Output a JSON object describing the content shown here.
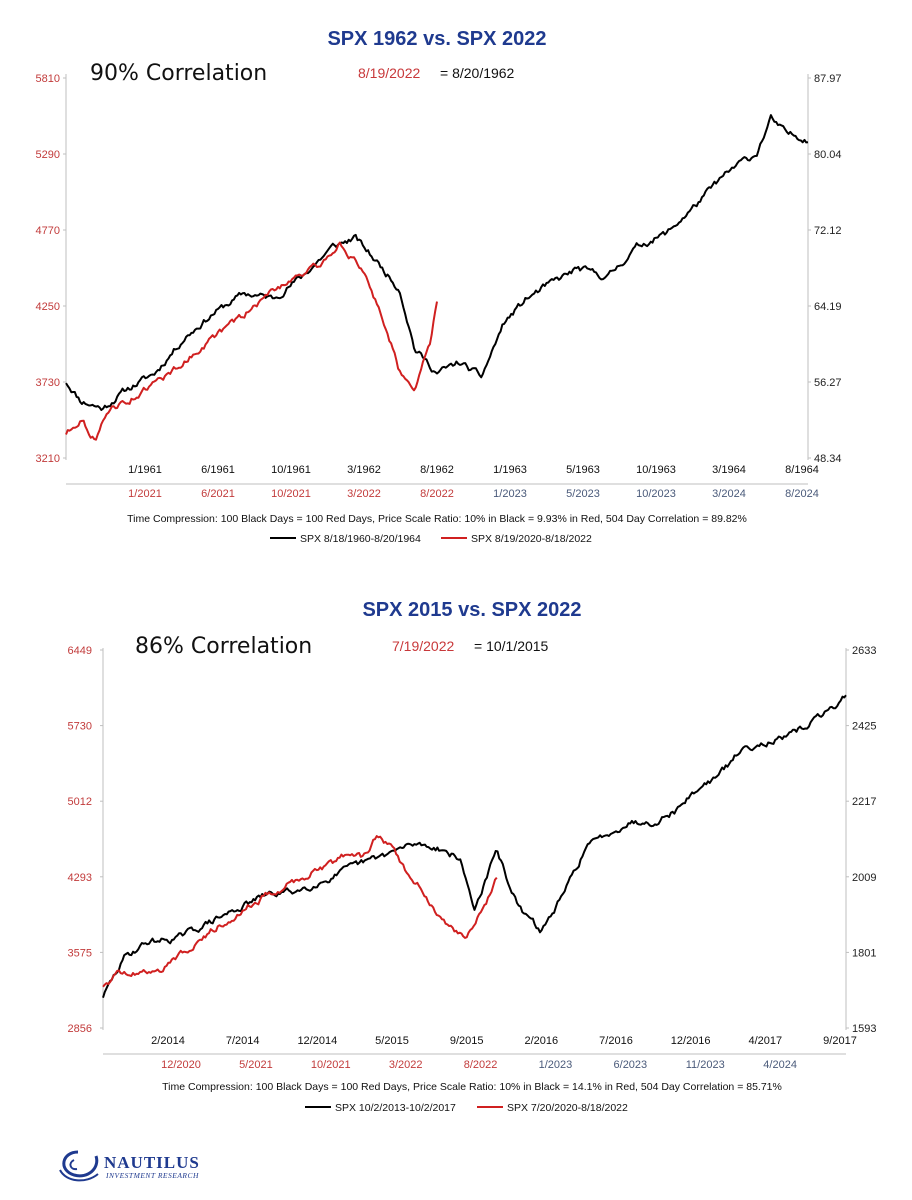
{
  "chart_data": [
    {
      "type": "line",
      "title": "SPX 1962 vs. SPX 2022",
      "annotation": "90% Correlation",
      "equivalence": {
        "red_date": "8/19/2022",
        "black_date": "= 8/20/1962"
      },
      "left_axis": {
        "ticks": [
          "5810",
          "5290",
          "4770",
          "4250",
          "3730",
          "3210"
        ],
        "ylim": [
          3210,
          5810
        ],
        "color": "#c8383a"
      },
      "right_axis": {
        "ticks": [
          "87.97",
          "80.04",
          "72.12",
          "64.19",
          "56.27",
          "48.34"
        ],
        "ylim": [
          48.34,
          87.97
        ]
      },
      "x_ticks_black": [
        "1/1961",
        "6/1961",
        "10/1961",
        "3/1962",
        "8/1962",
        "1/1963",
        "5/1963",
        "10/1963",
        "3/1964",
        "8/1964"
      ],
      "x_ticks_red": [
        "1/2021",
        "6/2021",
        "10/2021",
        "3/2022",
        "8/2022",
        "1/2023",
        "5/2023",
        "10/2023",
        "3/2024",
        "8/2024"
      ],
      "caption": "Time Compression: 100 Black Days = 100 Red Days,  Price Scale Ratio: 10% in Black = 9.93% in Red, 504 Day Correlation = 89.82%",
      "series": [
        {
          "name": "SPX 8/18/1960-8/20/1964",
          "color": "#000000",
          "axis": "right",
          "x": [
            0,
            0.02,
            0.05,
            0.08,
            0.12,
            0.16,
            0.2,
            0.24,
            0.28,
            0.32,
            0.36,
            0.39,
            0.42,
            0.45,
            0.47,
            0.5,
            0.53,
            0.56,
            0.59,
            0.62,
            0.65,
            0.69,
            0.73,
            0.77,
            0.81,
            0.85,
            0.88,
            0.91,
            0.93,
            0.95,
            0.97,
            1.0
          ],
          "values": [
            56.3,
            54.3,
            53.5,
            55.4,
            57.2,
            60.9,
            63.5,
            65.5,
            65.0,
            67.4,
            70.4,
            71.3,
            68.7,
            65.9,
            59.7,
            57.2,
            58.3,
            56.8,
            62.4,
            64.9,
            66.4,
            68.1,
            67.2,
            70.4,
            71.8,
            74.8,
            77.3,
            79.2,
            80.0,
            83.7,
            82.2,
            81.6
          ]
        },
        {
          "name": "SPX 8/19/2020-8/18/2022",
          "color": "#d02020",
          "axis": "left",
          "x": [
            0,
            0.02,
            0.04,
            0.06,
            0.08,
            0.12,
            0.16,
            0.2,
            0.24,
            0.28,
            0.31,
            0.34,
            0.37,
            0.39,
            0.41,
            0.43,
            0.45,
            0.47,
            0.49,
            0.5
          ],
          "values": [
            3380,
            3480,
            3330,
            3560,
            3590,
            3720,
            3870,
            4040,
            4190,
            4360,
            4460,
            4520,
            4680,
            4550,
            4380,
            4120,
            3800,
            3700,
            3980,
            4280
          ]
        }
      ]
    },
    {
      "type": "line",
      "title": "SPX 2015 vs. SPX 2022",
      "annotation": "86% Correlation",
      "equivalence": {
        "red_date": "7/19/2022",
        "black_date": "= 10/1/2015"
      },
      "left_axis": {
        "ticks": [
          "6449",
          "5730",
          "5012",
          "4293",
          "3575",
          "2856"
        ],
        "ylim": [
          2856,
          6449
        ],
        "color": "#c8383a"
      },
      "right_axis": {
        "ticks": [
          "2633",
          "2425",
          "2217",
          "2009",
          "1801",
          "1593"
        ],
        "ylim": [
          1593,
          2633
        ]
      },
      "x_ticks_black": [
        "2/2014",
        "7/2014",
        "12/2014",
        "5/2015",
        "9/2015",
        "2/2016",
        "7/2016",
        "12/2016",
        "4/2017",
        "9/2017"
      ],
      "x_ticks_red": [
        "12/2020",
        "5/2021",
        "10/2021",
        "3/2022",
        "8/2022",
        "1/2023",
        "6/2023",
        "11/2023",
        "4/2024"
      ],
      "caption": "Time Compression: 100 Black Days = 100 Red Days,  Price Scale Ratio: 10% in Black = 14.1% in Red, 504 Day Correlation = 85.71%",
      "series": [
        {
          "name": "SPX 10/2/2013-10/2/2017",
          "color": "#000000",
          "axis": "right",
          "x": [
            0,
            0.03,
            0.06,
            0.1,
            0.14,
            0.18,
            0.22,
            0.26,
            0.3,
            0.34,
            0.38,
            0.42,
            0.45,
            0.48,
            0.5,
            0.53,
            0.56,
            0.59,
            0.62,
            0.65,
            0.68,
            0.71,
            0.74,
            0.77,
            0.8,
            0.83,
            0.86,
            0.89,
            0.92,
            0.95,
            0.98,
            1.0
          ],
          "values": [
            1680,
            1790,
            1830,
            1840,
            1880,
            1920,
            1960,
            1970,
            2000,
            2040,
            2070,
            2100,
            2090,
            2060,
            1920,
            2080,
            1920,
            1860,
            1960,
            2090,
            2130,
            2160,
            2160,
            2190,
            2250,
            2290,
            2360,
            2380,
            2390,
            2430,
            2470,
            2510
          ]
        },
        {
          "name": "SPX 7/20/2020-8/18/2022",
          "color": "#d02020",
          "axis": "left",
          "x": [
            0,
            0.02,
            0.05,
            0.08,
            0.11,
            0.14,
            0.17,
            0.2,
            0.23,
            0.26,
            0.29,
            0.31,
            0.33,
            0.35,
            0.37,
            0.39,
            0.41,
            0.43,
            0.45,
            0.47,
            0.49,
            0.51,
            0.53
          ],
          "values": [
            3260,
            3380,
            3380,
            3420,
            3590,
            3750,
            3900,
            4040,
            4150,
            4260,
            4370,
            4430,
            4530,
            4470,
            4690,
            4580,
            4300,
            4180,
            3900,
            3780,
            3730,
            3960,
            4280
          ]
        }
      ]
    }
  ],
  "logo": {
    "name": "NAUTILUS",
    "sub": "INVESTMENT RESEARCH"
  }
}
